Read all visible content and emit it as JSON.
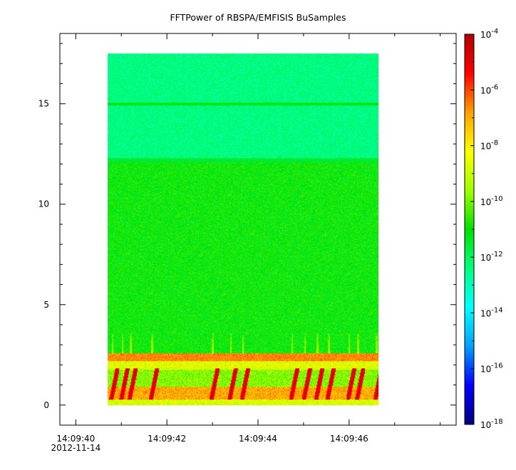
{
  "chart_data": {
    "type": "heatmap",
    "title": "FFTPower of RBSPA/EMFISIS  BuSamples",
    "xlabel": "",
    "ylabel": "",
    "x_ticks": [
      "14:09:40",
      "14:09:42",
      "14:09:44",
      "14:09:46"
    ],
    "x_tick_values_s": [
      40,
      42,
      44,
      46
    ],
    "x_first_tick_sublabel": "2012-11-14",
    "x_range_s": [
      39.65,
      48.35
    ],
    "y_ticks": [
      "0",
      "5",
      "10",
      "15"
    ],
    "y_tick_values": [
      0,
      5,
      10,
      15
    ],
    "ylim": [
      -1,
      18.5
    ],
    "data_extent": {
      "x_s": [
        40.7,
        46.65
      ],
      "y": [
        0,
        17.5
      ]
    },
    "colorbar": {
      "scale": "log",
      "range": [
        1e-18,
        0.0001
      ],
      "tick_exponents": [
        -4,
        -6,
        -8,
        -10,
        -12,
        -14,
        -16,
        -18
      ],
      "tick_base": "10",
      "colors": [
        "#00007f",
        "#0000ff",
        "#00a0ff",
        "#00ffff",
        "#00ff80",
        "#00e000",
        "#a0ff00",
        "#ffff00",
        "#ffa000",
        "#ff0000",
        "#b00000"
      ]
    },
    "features": [
      {
        "description_level": "background",
        "y_range": [
          0,
          12.2
        ],
        "log10_power": -11
      },
      {
        "description_level": "upper band",
        "y_range": [
          12.2,
          17.5
        ],
        "log10_power": -12.4
      },
      {
        "description_level": "narrow line",
        "y": 15,
        "log10_power": -11.3
      },
      {
        "description_level": "low band",
        "y_range": [
          2.2,
          2.6
        ],
        "log10_power": -6.5
      },
      {
        "description_level": "low band",
        "y_range": [
          0.3,
          0.9
        ],
        "log10_power": -7
      }
    ],
    "bursts_s": [
      40.75,
      40.97,
      41.15,
      41.62,
      42.95,
      43.35,
      43.62,
      44.7,
      44.98,
      45.25,
      45.5,
      45.95,
      46.15,
      46.55
    ]
  }
}
